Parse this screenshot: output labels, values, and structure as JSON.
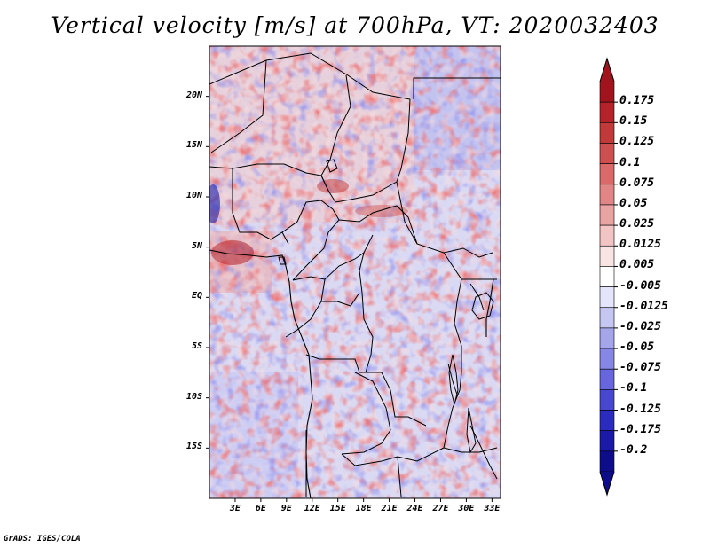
{
  "title": "Vertical velocity [m/s] at 700hPa, VT: 2020032403",
  "credit": "GrADS: IGES/COLA",
  "map": {
    "field": "vertical velocity",
    "units": "m/s",
    "level": "700hPa",
    "valid_time": "2020032403",
    "lon_range": [
      0,
      34
    ],
    "lat_range": [
      -20,
      25
    ],
    "lat_ticks": [
      {
        "label": "20N",
        "value": 20
      },
      {
        "label": "15N",
        "value": 15
      },
      {
        "label": "10N",
        "value": 10
      },
      {
        "label": "5N",
        "value": 5
      },
      {
        "label": "EQ",
        "value": 0
      },
      {
        "label": "5S",
        "value": -5
      },
      {
        "label": "10S",
        "value": -10
      },
      {
        "label": "15S",
        "value": -15
      }
    ],
    "lon_ticks": [
      {
        "label": "3E",
        "value": 3
      },
      {
        "label": "6E",
        "value": 6
      },
      {
        "label": "9E",
        "value": 9
      },
      {
        "label": "12E",
        "value": 12
      },
      {
        "label": "15E",
        "value": 15
      },
      {
        "label": "18E",
        "value": 18
      },
      {
        "label": "21E",
        "value": 21
      },
      {
        "label": "24E",
        "value": 24
      },
      {
        "label": "27E",
        "value": 27
      },
      {
        "label": "30E",
        "value": 30
      },
      {
        "label": "33E",
        "value": 33
      }
    ]
  },
  "colorbar": {
    "labels": [
      "0.175",
      "0.15",
      "0.125",
      "0.1",
      "0.075",
      "0.05",
      "0.025",
      "0.0125",
      "0.005",
      "-0.005",
      "-0.0125",
      "-0.025",
      "-0.05",
      "-0.075",
      "-0.1",
      "-0.125",
      "-0.175",
      "-0.2"
    ],
    "colors": [
      "#a0141e",
      "#b4232a",
      "#c03a3a",
      "#cd5050",
      "#d86a6a",
      "#e08686",
      "#eaa3a3",
      "#f2c4c4",
      "#f9e4e4",
      "#ffffff",
      "#e4e4fa",
      "#c6c6f2",
      "#a5a5eb",
      "#8686e3",
      "#6767db",
      "#4848cf",
      "#2b2bbd",
      "#1a1aa6",
      "#0d0d8a"
    ]
  }
}
